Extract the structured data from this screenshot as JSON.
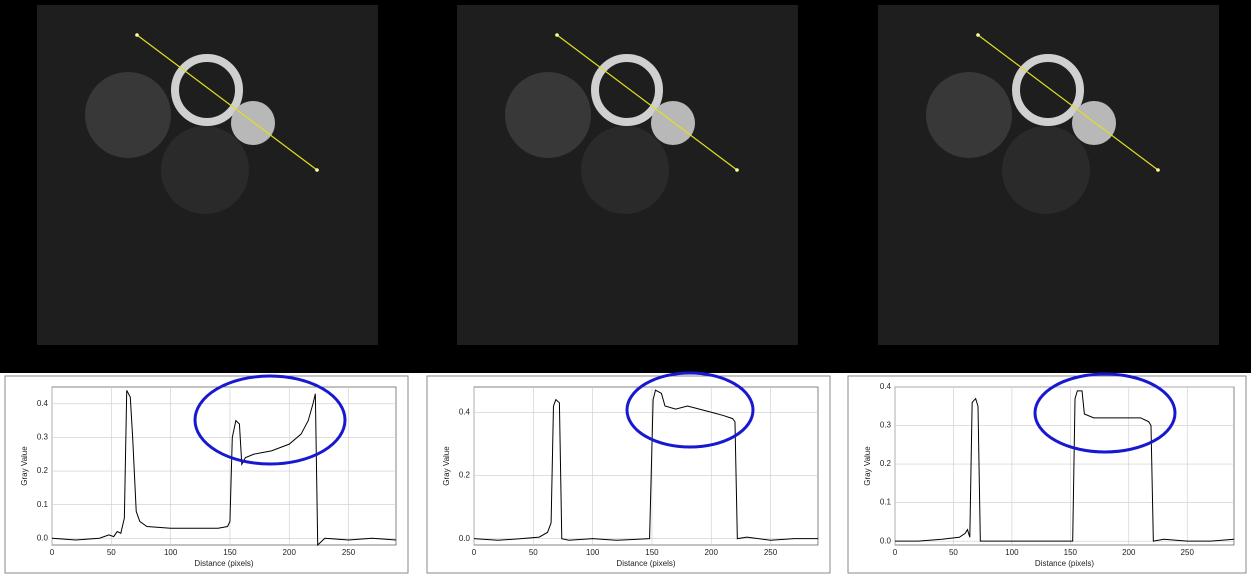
{
  "chart_data": [
    {
      "type": "line",
      "xlabel": "Distance (pixels)",
      "ylabel": "Gray Value",
      "color": "#000000",
      "grid": true,
      "xlim": [
        0,
        290
      ],
      "xticks": [
        0,
        50,
        100,
        150,
        200,
        250
      ],
      "ylim": [
        -0.02,
        0.45
      ],
      "yticks": [
        {
          "value": 0,
          "label": "0.0"
        },
        0.1,
        0.2,
        0.3,
        0.4
      ],
      "x": [
        0,
        20,
        40,
        48,
        52,
        55,
        58,
        61,
        63,
        66,
        68,
        71,
        74,
        80,
        100,
        120,
        140,
        148,
        150,
        152,
        155,
        158,
        160,
        163,
        170,
        185,
        200,
        210,
        216,
        220,
        222,
        224,
        230,
        250,
        270,
        290
      ],
      "values": [
        0.0,
        -0.005,
        0.0,
        0.01,
        0.005,
        0.02,
        0.015,
        0.06,
        0.44,
        0.42,
        0.3,
        0.08,
        0.05,
        0.035,
        0.03,
        0.03,
        0.03,
        0.035,
        0.05,
        0.3,
        0.35,
        0.34,
        0.22,
        0.24,
        0.25,
        0.26,
        0.28,
        0.31,
        0.35,
        0.4,
        0.43,
        -0.02,
        0.0,
        -0.005,
        0.0,
        -0.005
      ]
    },
    {
      "type": "line",
      "xlabel": "Distance (pixels)",
      "ylabel": "Gray Value",
      "color": "#000000",
      "grid": true,
      "xlim": [
        0,
        290
      ],
      "xticks": [
        0,
        50,
        100,
        150,
        200,
        250
      ],
      "ylim": [
        -0.02,
        0.48
      ],
      "yticks": [
        {
          "value": 0,
          "label": "0.0"
        },
        0.2,
        0.4
      ],
      "x": [
        0,
        20,
        40,
        55,
        62,
        65,
        67,
        69,
        72,
        74,
        80,
        100,
        120,
        148,
        151,
        153,
        158,
        161,
        170,
        180,
        190,
        200,
        210,
        218,
        220,
        222,
        230,
        250,
        270,
        290
      ],
      "values": [
        0.0,
        -0.005,
        0.0,
        0.005,
        0.02,
        0.05,
        0.42,
        0.44,
        0.43,
        0.0,
        -0.005,
        0.0,
        -0.005,
        0.0,
        0.44,
        0.47,
        0.46,
        0.42,
        0.41,
        0.42,
        0.41,
        0.4,
        0.39,
        0.38,
        0.37,
        0.0,
        0.005,
        -0.005,
        0.0,
        0.0
      ]
    },
    {
      "type": "line",
      "xlabel": "Distance (pixels)",
      "ylabel": "Gray Value",
      "color": "#000000",
      "grid": true,
      "xlim": [
        0,
        290
      ],
      "xticks": [
        0,
        50,
        100,
        150,
        200,
        250
      ],
      "ylim": [
        -0.01,
        0.4
      ],
      "yticks": [
        {
          "value": 0,
          "label": "0.0"
        },
        0.1,
        0.2,
        0.3,
        0.4
      ],
      "x": [
        0,
        20,
        40,
        55,
        60,
        62,
        64,
        66,
        69,
        71,
        73,
        80,
        100,
        120,
        152,
        154,
        156,
        160,
        162,
        170,
        180,
        190,
        200,
        210,
        217,
        219,
        221,
        230,
        250,
        270,
        290
      ],
      "values": [
        0.0,
        0.0,
        0.005,
        0.01,
        0.02,
        0.03,
        0.01,
        0.36,
        0.37,
        0.35,
        0.0,
        0.0,
        0.0,
        0.0,
        0.0,
        0.37,
        0.39,
        0.39,
        0.33,
        0.32,
        0.32,
        0.32,
        0.32,
        0.32,
        0.31,
        0.3,
        0.0,
        0.005,
        0.0,
        0.0,
        0.005
      ]
    }
  ]
}
